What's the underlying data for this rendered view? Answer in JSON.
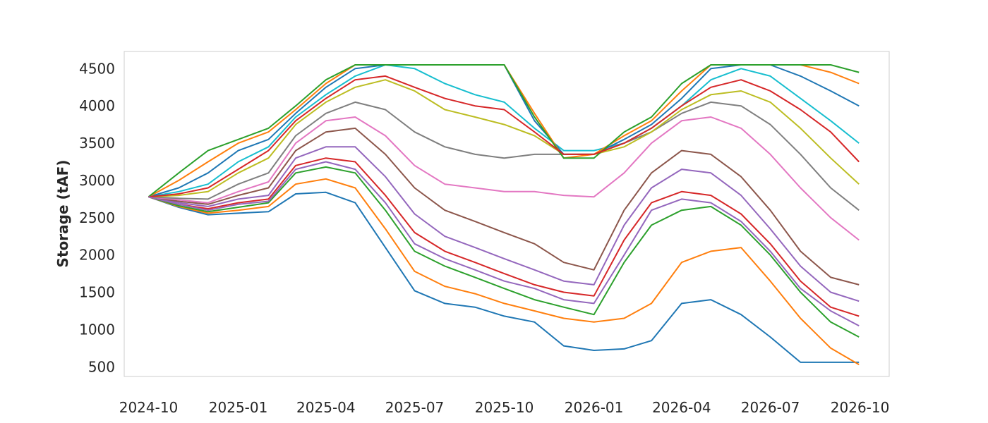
{
  "chart_data": {
    "type": "line",
    "title": "",
    "xlabel": "",
    "ylabel": "Storage (tAF)",
    "x_ticks": [
      "2024-10",
      "2025-01",
      "2025-04",
      "2025-07",
      "2025-10",
      "2026-01",
      "2026-04",
      "2026-07",
      "2026-10"
    ],
    "y_ticks": [
      500,
      1000,
      1500,
      2000,
      2500,
      3000,
      3500,
      4000,
      4500
    ],
    "xlim": [
      "2024-09-06",
      "2026-10-31"
    ],
    "ylim": [
      370,
      4730
    ],
    "grid": false,
    "legend": "none",
    "palette": [
      "#1f77b4",
      "#ff7f0e",
      "#2ca02c",
      "#d62728",
      "#9467bd",
      "#8c564b",
      "#e377c2",
      "#7f7f7f",
      "#bcbd22",
      "#17becf"
    ],
    "x": [
      "2024-10-01",
      "2024-11-01",
      "2024-12-01",
      "2025-01-01",
      "2025-02-01",
      "2025-03-01",
      "2025-04-01",
      "2025-05-01",
      "2025-06-01",
      "2025-07-01",
      "2025-08-01",
      "2025-09-01",
      "2025-10-01",
      "2025-11-01",
      "2025-12-01",
      "2026-01-01",
      "2026-02-01",
      "2026-03-01",
      "2026-04-01",
      "2026-05-01",
      "2026-06-01",
      "2026-07-01",
      "2026-08-01",
      "2026-09-01",
      "2026-09-30"
    ],
    "series": [
      {
        "values": [
          2780,
          2640,
          2540,
          2560,
          2580,
          2820,
          2840,
          2700,
          2100,
          1520,
          1350,
          1300,
          1180,
          1100,
          780,
          720,
          740,
          850,
          1350,
          1400,
          1200,
          900,
          560,
          560,
          560
        ]
      },
      {
        "values": [
          2780,
          2650,
          2560,
          2600,
          2650,
          2950,
          3020,
          2900,
          2350,
          1780,
          1580,
          1480,
          1350,
          1250,
          1150,
          1100,
          1150,
          1350,
          1900,
          2050,
          2100,
          1650,
          1150,
          750,
          530
        ]
      },
      {
        "values": [
          2780,
          2660,
          2580,
          2640,
          2700,
          3100,
          3180,
          3100,
          2600,
          2050,
          1850,
          1700,
          1550,
          1400,
          1300,
          1200,
          1900,
          2400,
          2600,
          2650,
          2400,
          2000,
          1500,
          1100,
          900
        ]
      },
      {
        "values": [
          2780,
          2680,
          2620,
          2700,
          2750,
          3200,
          3300,
          3250,
          2800,
          2300,
          2050,
          1900,
          1750,
          1600,
          1500,
          1450,
          2200,
          2700,
          2850,
          2800,
          2550,
          2150,
          1650,
          1300,
          1180
        ]
      },
      {
        "values": [
          2780,
          2700,
          2650,
          2750,
          2800,
          3300,
          3450,
          3450,
          3050,
          2550,
          2250,
          2100,
          1950,
          1800,
          1650,
          1600,
          2400,
          2900,
          3150,
          3100,
          2800,
          2350,
          1850,
          1500,
          1380
        ]
      },
      {
        "values": [
          2780,
          2720,
          2680,
          2800,
          2900,
          3400,
          3650,
          3700,
          3350,
          2900,
          2600,
          2450,
          2300,
          2150,
          1900,
          1800,
          2600,
          3100,
          3400,
          3350,
          3050,
          2600,
          2050,
          1700,
          1600
        ]
      },
      {
        "values": [
          2780,
          2740,
          2700,
          2850,
          2980,
          3500,
          3800,
          3850,
          3600,
          3200,
          2950,
          2900,
          2850,
          2850,
          2800,
          2780,
          3100,
          3500,
          3800,
          3850,
          3700,
          3350,
          2900,
          2500,
          2200
        ]
      },
      {
        "values": [
          2780,
          2760,
          2750,
          2950,
          3100,
          3600,
          3900,
          4050,
          3950,
          3650,
          3450,
          3350,
          3300,
          3350,
          3350,
          3350,
          3500,
          3650,
          3900,
          4050,
          4000,
          3750,
          3350,
          2900,
          2600
        ]
      },
      {
        "values": [
          2780,
          2800,
          2850,
          3100,
          3300,
          3750,
          4050,
          4250,
          4350,
          4200,
          3950,
          3850,
          3750,
          3600,
          3350,
          3350,
          3450,
          3650,
          3950,
          4150,
          4200,
          4050,
          3700,
          3300,
          2950
        ]
      },
      {
        "values": [
          2780,
          2850,
          2950,
          3250,
          3450,
          3850,
          4150,
          4400,
          4550,
          4500,
          4300,
          4150,
          4050,
          3700,
          3400,
          3400,
          3500,
          3700,
          4000,
          4350,
          4500,
          4400,
          4100,
          3800,
          3500
        ]
      },
      {
        "values": [
          2780,
          2900,
          3100,
          3400,
          3550,
          3900,
          4250,
          4500,
          4550,
          4550,
          4550,
          4550,
          4550,
          3800,
          3350,
          3350,
          3550,
          3750,
          4100,
          4500,
          4550,
          4550,
          4400,
          4200,
          4000
        ]
      },
      {
        "values": [
          2780,
          3000,
          3250,
          3500,
          3650,
          3950,
          4300,
          4550,
          4550,
          4550,
          4550,
          4550,
          4550,
          3900,
          3300,
          3350,
          3600,
          3800,
          4200,
          4550,
          4550,
          4550,
          4550,
          4450,
          4300
        ]
      },
      {
        "values": [
          2780,
          3100,
          3400,
          3550,
          3700,
          4000,
          4350,
          4550,
          4550,
          4550,
          4550,
          4550,
          4550,
          3850,
          3300,
          3300,
          3650,
          3850,
          4300,
          4550,
          4550,
          4550,
          4550,
          4550,
          4450
        ]
      },
      {
        "values": [
          2780,
          2820,
          2900,
          3150,
          3400,
          3800,
          4100,
          4350,
          4400,
          4250,
          4100,
          4000,
          3950,
          3650,
          3350,
          3350,
          3500,
          3700,
          4000,
          4250,
          4350,
          4200,
          3950,
          3650,
          3250
        ]
      },
      {
        "values": [
          2780,
          2680,
          2600,
          2680,
          2720,
          3150,
          3250,
          3150,
          2700,
          2150,
          1950,
          1800,
          1650,
          1550,
          1400,
          1350,
          2000,
          2600,
          2750,
          2700,
          2450,
          2050,
          1550,
          1250,
          1050
        ]
      }
    ]
  }
}
